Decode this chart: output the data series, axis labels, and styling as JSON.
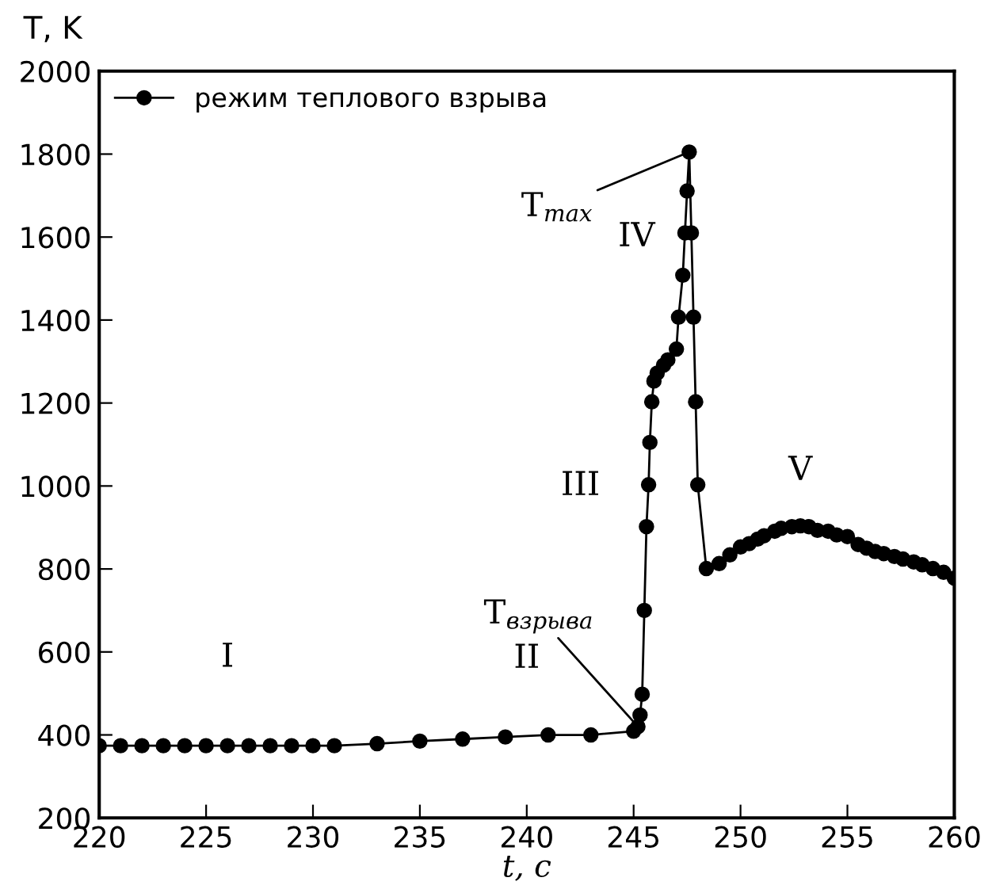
{
  "chart_data": {
    "type": "line",
    "xlabel": "t, c",
    "ylabel": "T, K",
    "series": [
      {
        "name": "режим теплового взрыва",
        "color": "#000000",
        "x": [
          220,
          221,
          222,
          223,
          224,
          225,
          226,
          227,
          228,
          229,
          230,
          231,
          233,
          235,
          237,
          239,
          241,
          243,
          245,
          245.2,
          245.3,
          245.4,
          245.5,
          245.6,
          245.7,
          245.76,
          245.85,
          245.95,
          246.1,
          246.4,
          246.6,
          247.0,
          247.1,
          247.3,
          247.4,
          247.5,
          247.6,
          247.7,
          247.8,
          247.9,
          248.0,
          248.4,
          249.0,
          249.5,
          250.0,
          250.4,
          250.8,
          251.1,
          251.6,
          251.9,
          252.4,
          252.8,
          253.2,
          253.6,
          254.1,
          254.5,
          255.0,
          255.5,
          255.9,
          256.3,
          256.7,
          257.2,
          257.6,
          258.1,
          258.5,
          259.0,
          259.5,
          260.0
        ],
        "values": [
          374,
          374,
          374,
          374,
          374,
          374,
          374,
          374,
          374,
          374,
          374,
          374,
          379,
          385,
          390,
          395,
          400,
          400,
          409,
          420,
          448,
          498,
          700,
          902,
          1003,
          1105,
          1203,
          1253,
          1272,
          1291,
          1304,
          1330,
          1407,
          1508,
          1610,
          1711,
          1805,
          1610,
          1407,
          1203,
          1003,
          801,
          813,
          834,
          853,
          861,
          872,
          880,
          891,
          898,
          902,
          904,
          902,
          893,
          891,
          882,
          878,
          859,
          850,
          842,
          837,
          830,
          824,
          817,
          810,
          801,
          792,
          778
        ]
      }
    ],
    "marker": "circle",
    "line_style": "solid",
    "xlim": [
      220,
      260
    ],
    "ylim": [
      200,
      2000
    ],
    "xticks": [
      220,
      225,
      230,
      235,
      240,
      245,
      250,
      255,
      260
    ],
    "yticks": [
      200,
      400,
      600,
      800,
      1000,
      1200,
      1400,
      1600,
      1800,
      2000
    ],
    "grid": false,
    "legend": "top left",
    "annotations": [
      {
        "text": "T$_{max}$",
        "x": 247.6,
        "y": 1805
      },
      {
        "text": "T$_{взрыва}$",
        "x": 245.2,
        "y": 420
      },
      {
        "text": "I",
        "x": 226,
        "y": 374
      },
      {
        "text": "II",
        "x": 240,
        "y": 398
      },
      {
        "text": "III",
        "x": 245.6,
        "y": 1000
      },
      {
        "text": "IV",
        "x": 247.4,
        "y": 1600
      },
      {
        "text": "V",
        "x": 252.8,
        "y": 904
      }
    ]
  }
}
